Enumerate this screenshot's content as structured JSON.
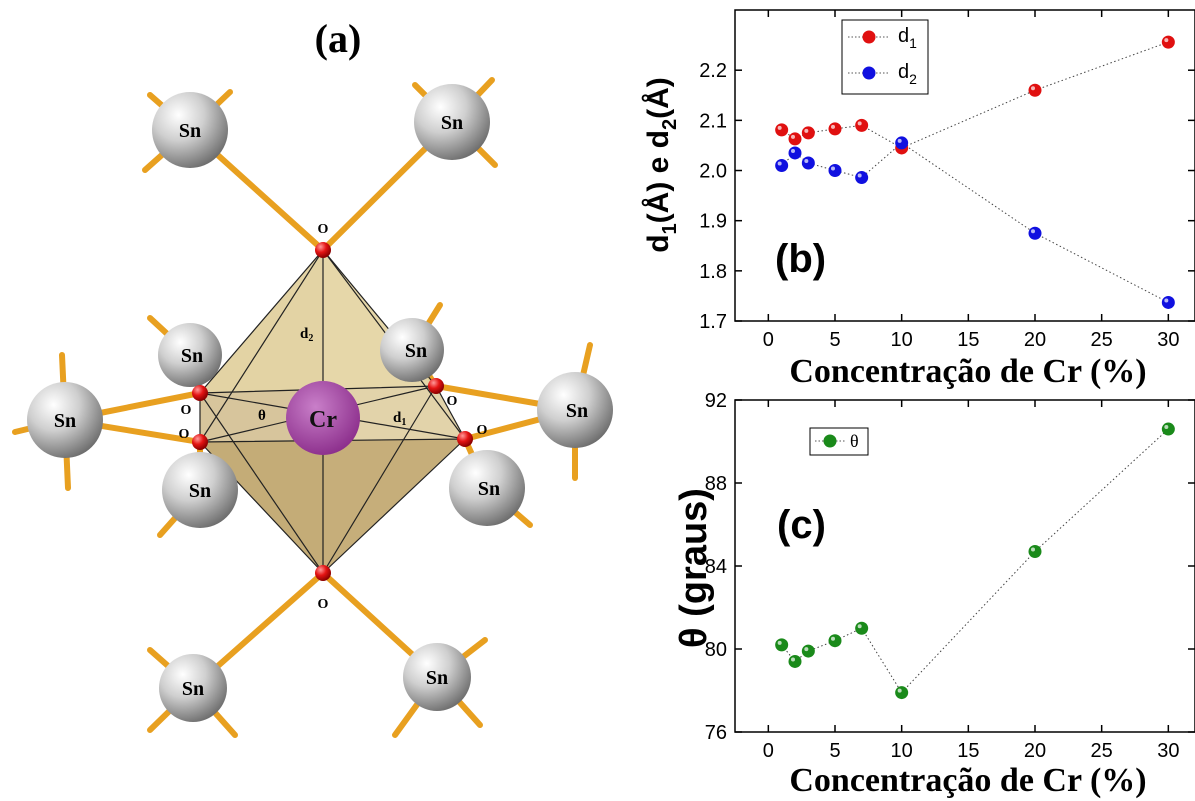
{
  "panel_a": {
    "label": "(a)",
    "center_atom": "Cr",
    "oxygen_label": "O",
    "tin_label": "Sn",
    "d1_label": "d",
    "d1_sub": "1",
    "d2_label": "d",
    "d2_sub": "2",
    "theta_label": "θ"
  },
  "chart_data": [
    {
      "type": "scatter",
      "panel_label": "(b)",
      "xlabel": "Concentração de Cr (%)",
      "ylabel": "d1(Å)  e  d2(Å)",
      "ylabel_parts": {
        "d": "d",
        "s1": "1",
        "mid": "(Å)  e  d",
        "s2": "2",
        "end": "(Å)"
      },
      "xlim": [
        -2.5,
        32
      ],
      "ylim": [
        1.7,
        2.32
      ],
      "xticks": [
        0,
        5,
        10,
        15,
        20,
        25,
        30
      ],
      "yticks": [
        1.7,
        1.8,
        1.9,
        2.0,
        2.1,
        2.2
      ],
      "ytick_labels": [
        "1.7",
        "1.8",
        "1.9",
        "2.0",
        "2.1",
        "2.2"
      ],
      "legend_position": "top-left",
      "line_style": "dotted",
      "series": [
        {
          "name": "d1",
          "label_main": "d",
          "label_sub": "1",
          "color": "#e01010",
          "x": [
            1,
            2,
            3,
            5,
            7,
            10,
            20,
            30
          ],
          "y": [
            2.081,
            2.063,
            2.075,
            2.083,
            2.09,
            2.045,
            2.16,
            2.256
          ]
        },
        {
          "name": "d2",
          "label_main": "d",
          "label_sub": "2",
          "color": "#1010e0",
          "x": [
            1,
            2,
            3,
            5,
            7,
            10,
            20,
            30
          ],
          "y": [
            2.01,
            2.035,
            2.015,
            2.0,
            1.986,
            2.055,
            1.875,
            1.737
          ]
        }
      ]
    },
    {
      "type": "scatter",
      "panel_label": "(c)",
      "xlabel": "Concentração de Cr (%)",
      "ylabel": "θ (graus)",
      "xlim": [
        -2.5,
        32
      ],
      "ylim": [
        76,
        92
      ],
      "xticks": [
        0,
        5,
        10,
        15,
        20,
        25,
        30
      ],
      "yticks": [
        76,
        80,
        84,
        88,
        92
      ],
      "ytick_labels": [
        "76",
        "80",
        "84",
        "88",
        "92"
      ],
      "legend_position": "top-left",
      "line_style": "dotted",
      "series": [
        {
          "name": "θ",
          "label_main": "θ",
          "label_sub": "",
          "color": "#1a8a1a",
          "x": [
            1,
            2,
            3,
            5,
            7,
            10,
            20,
            30
          ],
          "y": [
            80.2,
            79.4,
            79.9,
            80.4,
            81.0,
            77.9,
            84.7,
            90.6
          ]
        }
      ]
    }
  ]
}
